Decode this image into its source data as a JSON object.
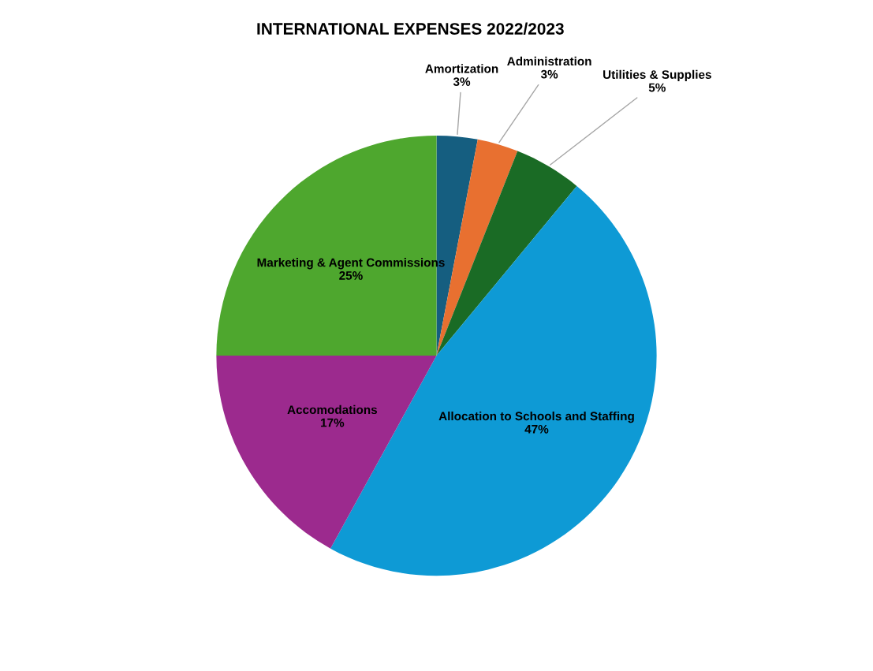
{
  "chart_data": {
    "type": "pie",
    "title": "INTERNATIONAL EXPENSES 2022/2023",
    "categories": [
      "Amortization",
      "Administration",
      "Utilities & Supplies",
      "Allocation to Schools and Staffing",
      "Accomodations",
      "Marketing & Agent Commissions"
    ],
    "values": [
      3,
      3,
      5,
      47,
      17,
      25
    ],
    "colors": [
      "#155e80",
      "#e87030",
      "#1a6b25",
      "#0e9ad5",
      "#9c2a8e",
      "#4ea72e"
    ],
    "value_labels": [
      "3%",
      "3%",
      "5%",
      "47%",
      "17%",
      "25%"
    ]
  }
}
